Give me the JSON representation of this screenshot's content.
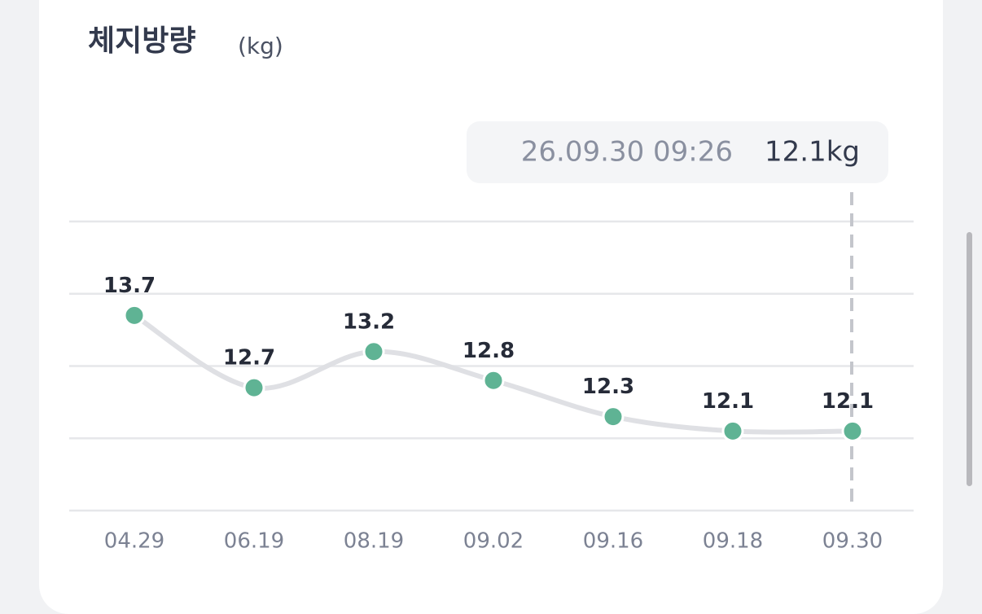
{
  "chart_data": {
    "type": "line",
    "title": "체지방량",
    "unit": "(kg)",
    "categories": [
      "04.29",
      "06.19",
      "08.19",
      "09.02",
      "09.16",
      "09.18",
      "09.30"
    ],
    "values": [
      13.7,
      12.7,
      13.2,
      12.8,
      12.3,
      12.1,
      12.1
    ],
    "color": "#5fb394",
    "line_color": "#dfe0e4",
    "ylim": [
      11,
      15
    ],
    "yticks": [
      11,
      12,
      13,
      14,
      15
    ],
    "grid": true,
    "tooltip": {
      "date": "26.09.30 09:26",
      "value": "12.1kg"
    }
  }
}
